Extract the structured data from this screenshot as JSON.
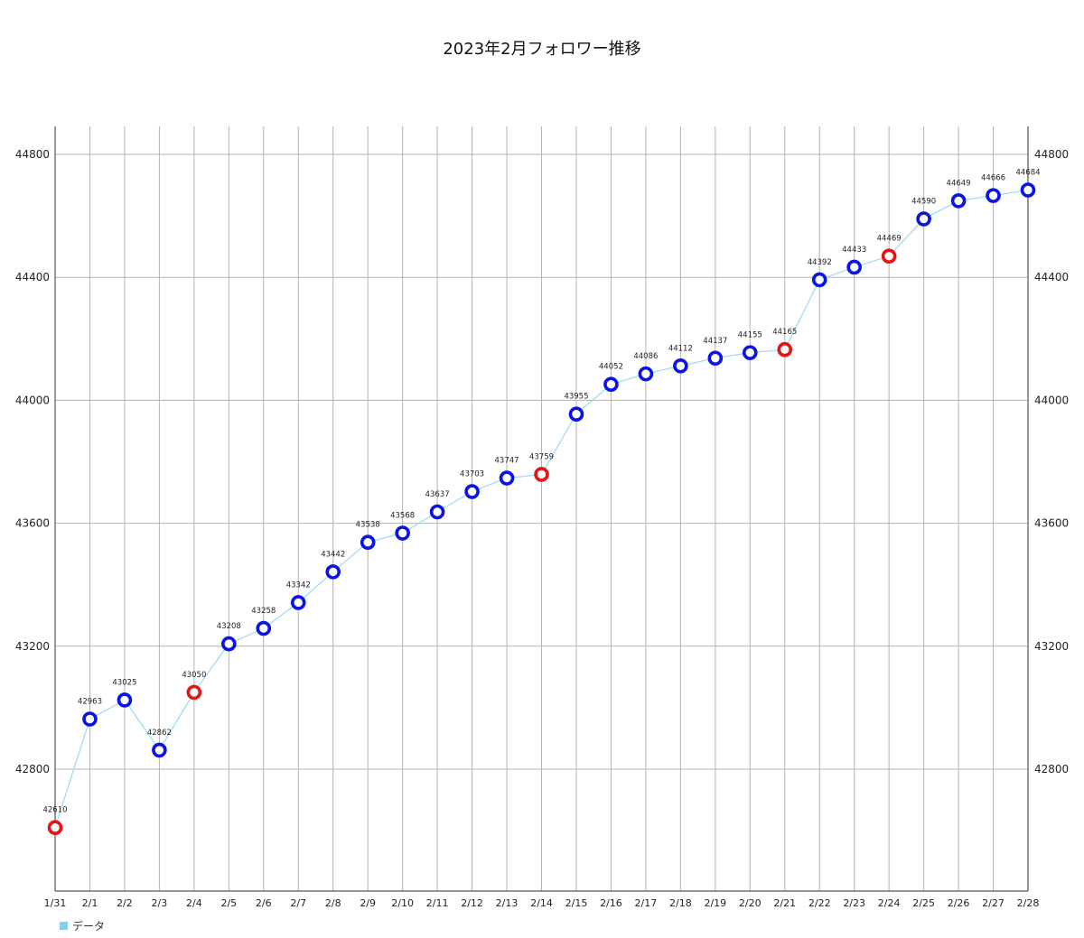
{
  "chart_data": {
    "type": "line",
    "title": "2023年2月フォロワー推移",
    "xlabel": "",
    "ylabel": "",
    "categories": [
      "1/31",
      "2/1",
      "2/2",
      "2/3",
      "2/4",
      "2/5",
      "2/6",
      "2/7",
      "2/8",
      "2/9",
      "2/10",
      "2/11",
      "2/12",
      "2/13",
      "2/14",
      "2/15",
      "2/16",
      "2/17",
      "2/18",
      "2/19",
      "2/20",
      "2/21",
      "2/22",
      "2/23",
      "2/24",
      "2/25",
      "2/26",
      "2/27",
      "2/28"
    ],
    "series": [
      {
        "name": "データ",
        "values": [
          42610,
          42963,
          43025,
          42862,
          43050,
          43208,
          43258,
          43342,
          43442,
          43538,
          43568,
          43637,
          43703,
          43747,
          43759,
          43955,
          44052,
          44086,
          44112,
          44137,
          44155,
          44165,
          44392,
          44433,
          44469,
          44590,
          44649,
          44666,
          44684
        ],
        "marker_colors": [
          "red",
          "blue",
          "blue",
          "blue",
          "red",
          "blue",
          "blue",
          "blue",
          "blue",
          "blue",
          "blue",
          "blue",
          "blue",
          "blue",
          "red",
          "blue",
          "blue",
          "blue",
          "blue",
          "blue",
          "blue",
          "red",
          "blue",
          "blue",
          "red",
          "blue",
          "blue",
          "blue",
          "blue"
        ]
      }
    ],
    "y_ticks": [
      42800,
      43200,
      43600,
      44000,
      44400,
      44800
    ],
    "ylim": [
      42500,
      44890
    ],
    "grid": true,
    "y_axis_both_sides": true,
    "legend_position": "bottom-left",
    "colors": {
      "line": "#9fdcf5",
      "legend_swatch": "#7fd4f5",
      "blue_marker": "#0a14e6",
      "red_marker": "#e61414",
      "grid": "#b3b3b3"
    }
  }
}
